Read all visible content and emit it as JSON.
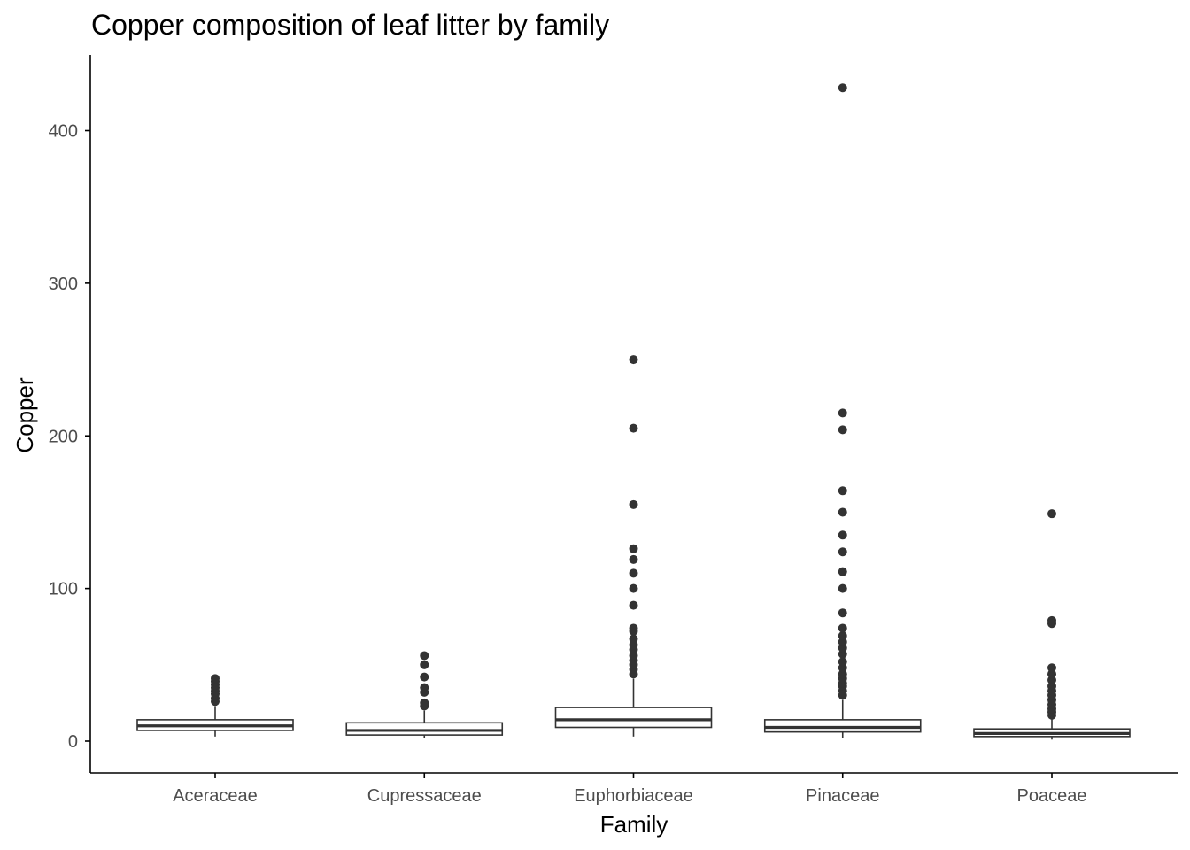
{
  "chart_data": {
    "type": "box",
    "title": "Copper composition of leaf litter by family",
    "xlabel": "Family",
    "ylabel": "Copper",
    "ylim": [
      -20,
      445
    ],
    "yticks": [
      0,
      100,
      200,
      300,
      400
    ],
    "grid": false,
    "categories": [
      "Aceraceae",
      "Cupressaceae",
      "Euphorbiaceae",
      "Pinaceae",
      "Poaceae"
    ],
    "boxes": [
      {
        "category": "Aceraceae",
        "lower_whisker": 3,
        "q1": 7,
        "median": 10,
        "q3": 14,
        "upper_whisker": 23,
        "outliers": [
          26,
          28,
          31,
          33,
          35,
          37,
          39,
          41
        ]
      },
      {
        "category": "Cupressaceae",
        "lower_whisker": 2,
        "q1": 4,
        "median": 7,
        "q3": 12,
        "upper_whisker": 20,
        "outliers": [
          23,
          25,
          32,
          35,
          42,
          50,
          56
        ]
      },
      {
        "category": "Euphorbiaceae",
        "lower_whisker": 3,
        "q1": 9,
        "median": 14,
        "q3": 22,
        "upper_whisker": 41,
        "outliers": [
          44,
          47,
          50,
          53,
          56,
          60,
          63,
          67,
          72,
          74,
          89,
          100,
          110,
          119,
          126,
          155,
          205,
          250
        ]
      },
      {
        "category": "Pinaceae",
        "lower_whisker": 2,
        "q1": 6,
        "median": 9,
        "q3": 14,
        "upper_whisker": 27,
        "outliers": [
          30,
          33,
          36,
          38,
          41,
          44,
          48,
          52,
          57,
          61,
          65,
          69,
          74,
          84,
          100,
          111,
          124,
          135,
          150,
          164,
          204,
          215,
          428
        ]
      },
      {
        "category": "Poaceae",
        "lower_whisker": 1,
        "q1": 3,
        "median": 5,
        "q3": 8,
        "upper_whisker": 15,
        "outliers": [
          17,
          19,
          21,
          24,
          27,
          30,
          33,
          36,
          40,
          44,
          48,
          77,
          79,
          149
        ]
      }
    ],
    "colors": {
      "box_stroke": "#333333",
      "box_fill": "#ffffff",
      "outlier": "#333333",
      "axis": "#000000",
      "tick_text": "#4d4d4d"
    }
  }
}
